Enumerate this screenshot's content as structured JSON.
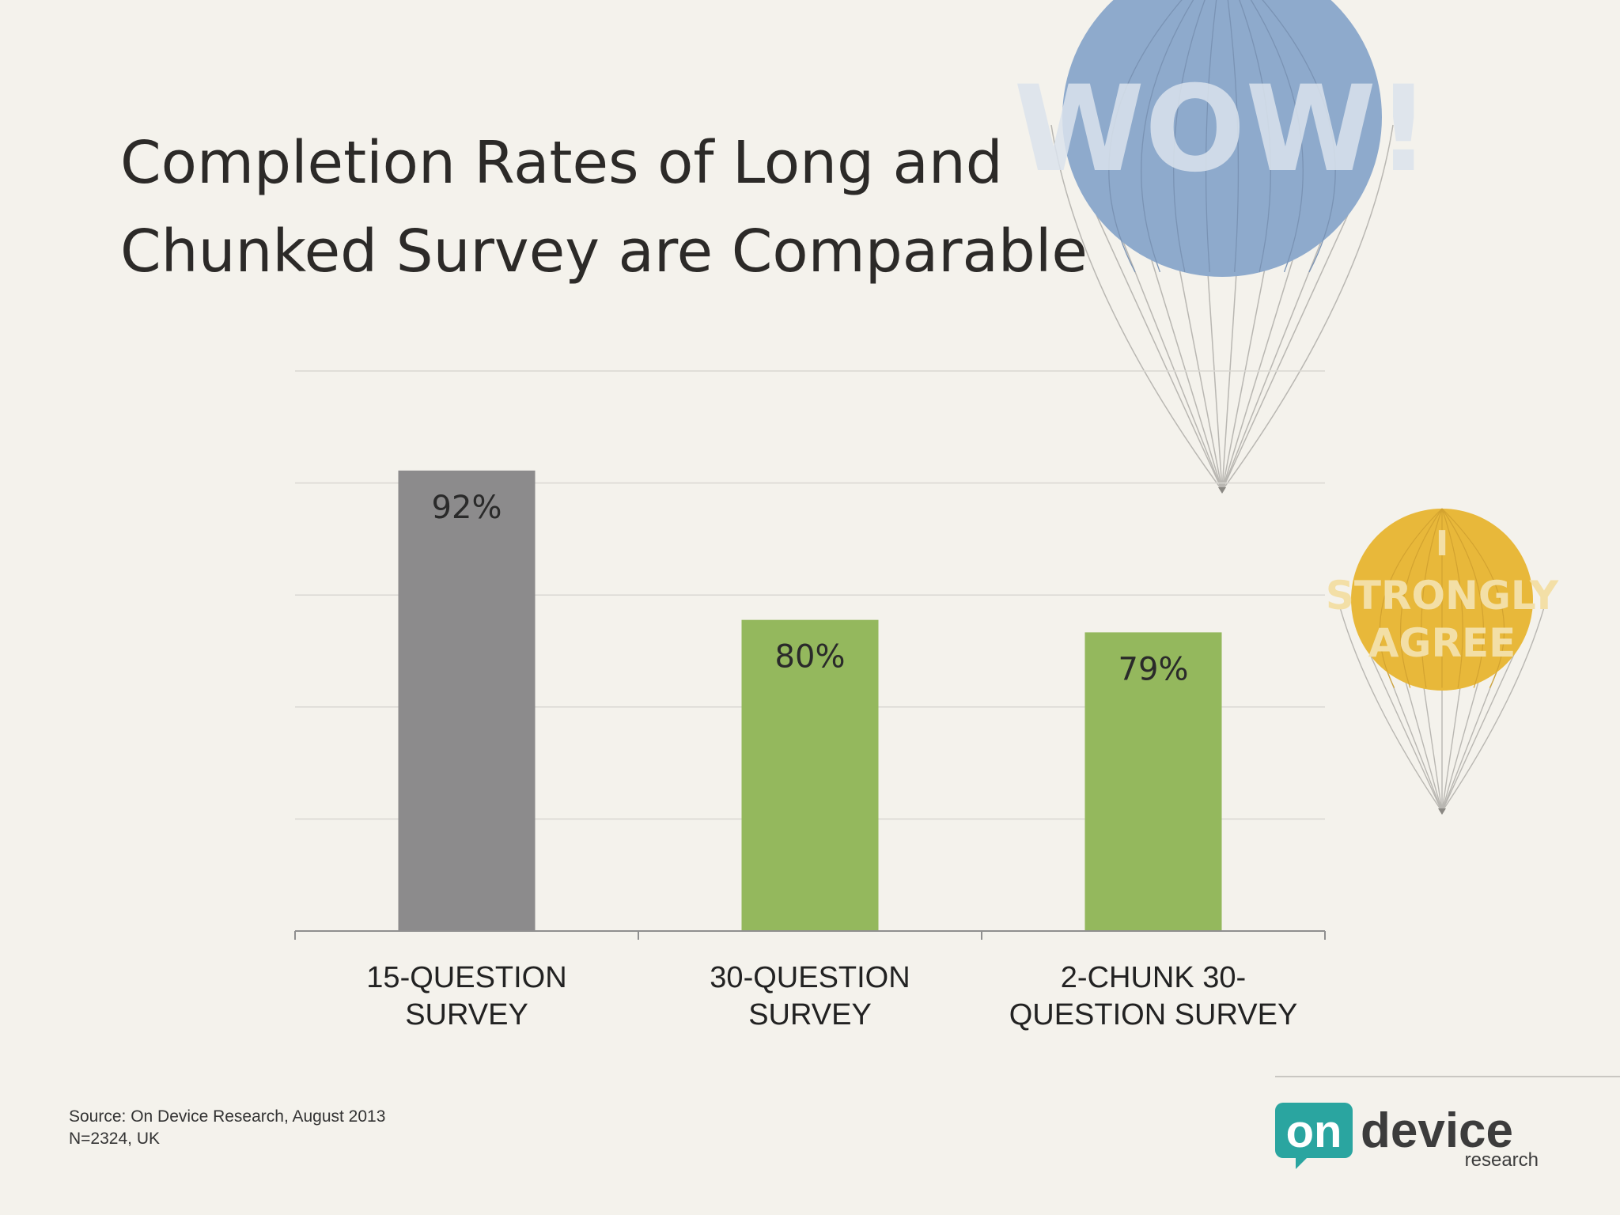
{
  "slide": {
    "title_line1": "Completion Rates of Long and",
    "title_line2": "Chunked Survey are Comparable",
    "source_line1": "Source: On Device Research, August 2013",
    "source_line2": "N=2324, UK"
  },
  "chart_data": {
    "type": "bar",
    "categories": [
      [
        "15-QUESTION",
        "SURVEY"
      ],
      [
        "30-QUESTION",
        "SURVEY"
      ],
      [
        "2-CHUNK 30-",
        "QUESTION SURVEY"
      ]
    ],
    "values": [
      92,
      80,
      79
    ],
    "value_labels": [
      "92%",
      "80%",
      "79%"
    ],
    "bar_colors": [
      "#8c8b8c",
      "#94b85d",
      "#94b85d"
    ],
    "ylim": [
      55,
      100
    ],
    "gridlines": true
  },
  "decor": {
    "balloon_big_text": "WOW!",
    "balloon_small_text": [
      "I",
      "STRONGLY",
      "AGREE"
    ],
    "balloon_big_color": "#8eaacc",
    "balloon_small_color": "#e8b83a"
  },
  "logo": {
    "on": "on",
    "device": "device",
    "research": "research",
    "accent_color": "#2aa5a0"
  }
}
